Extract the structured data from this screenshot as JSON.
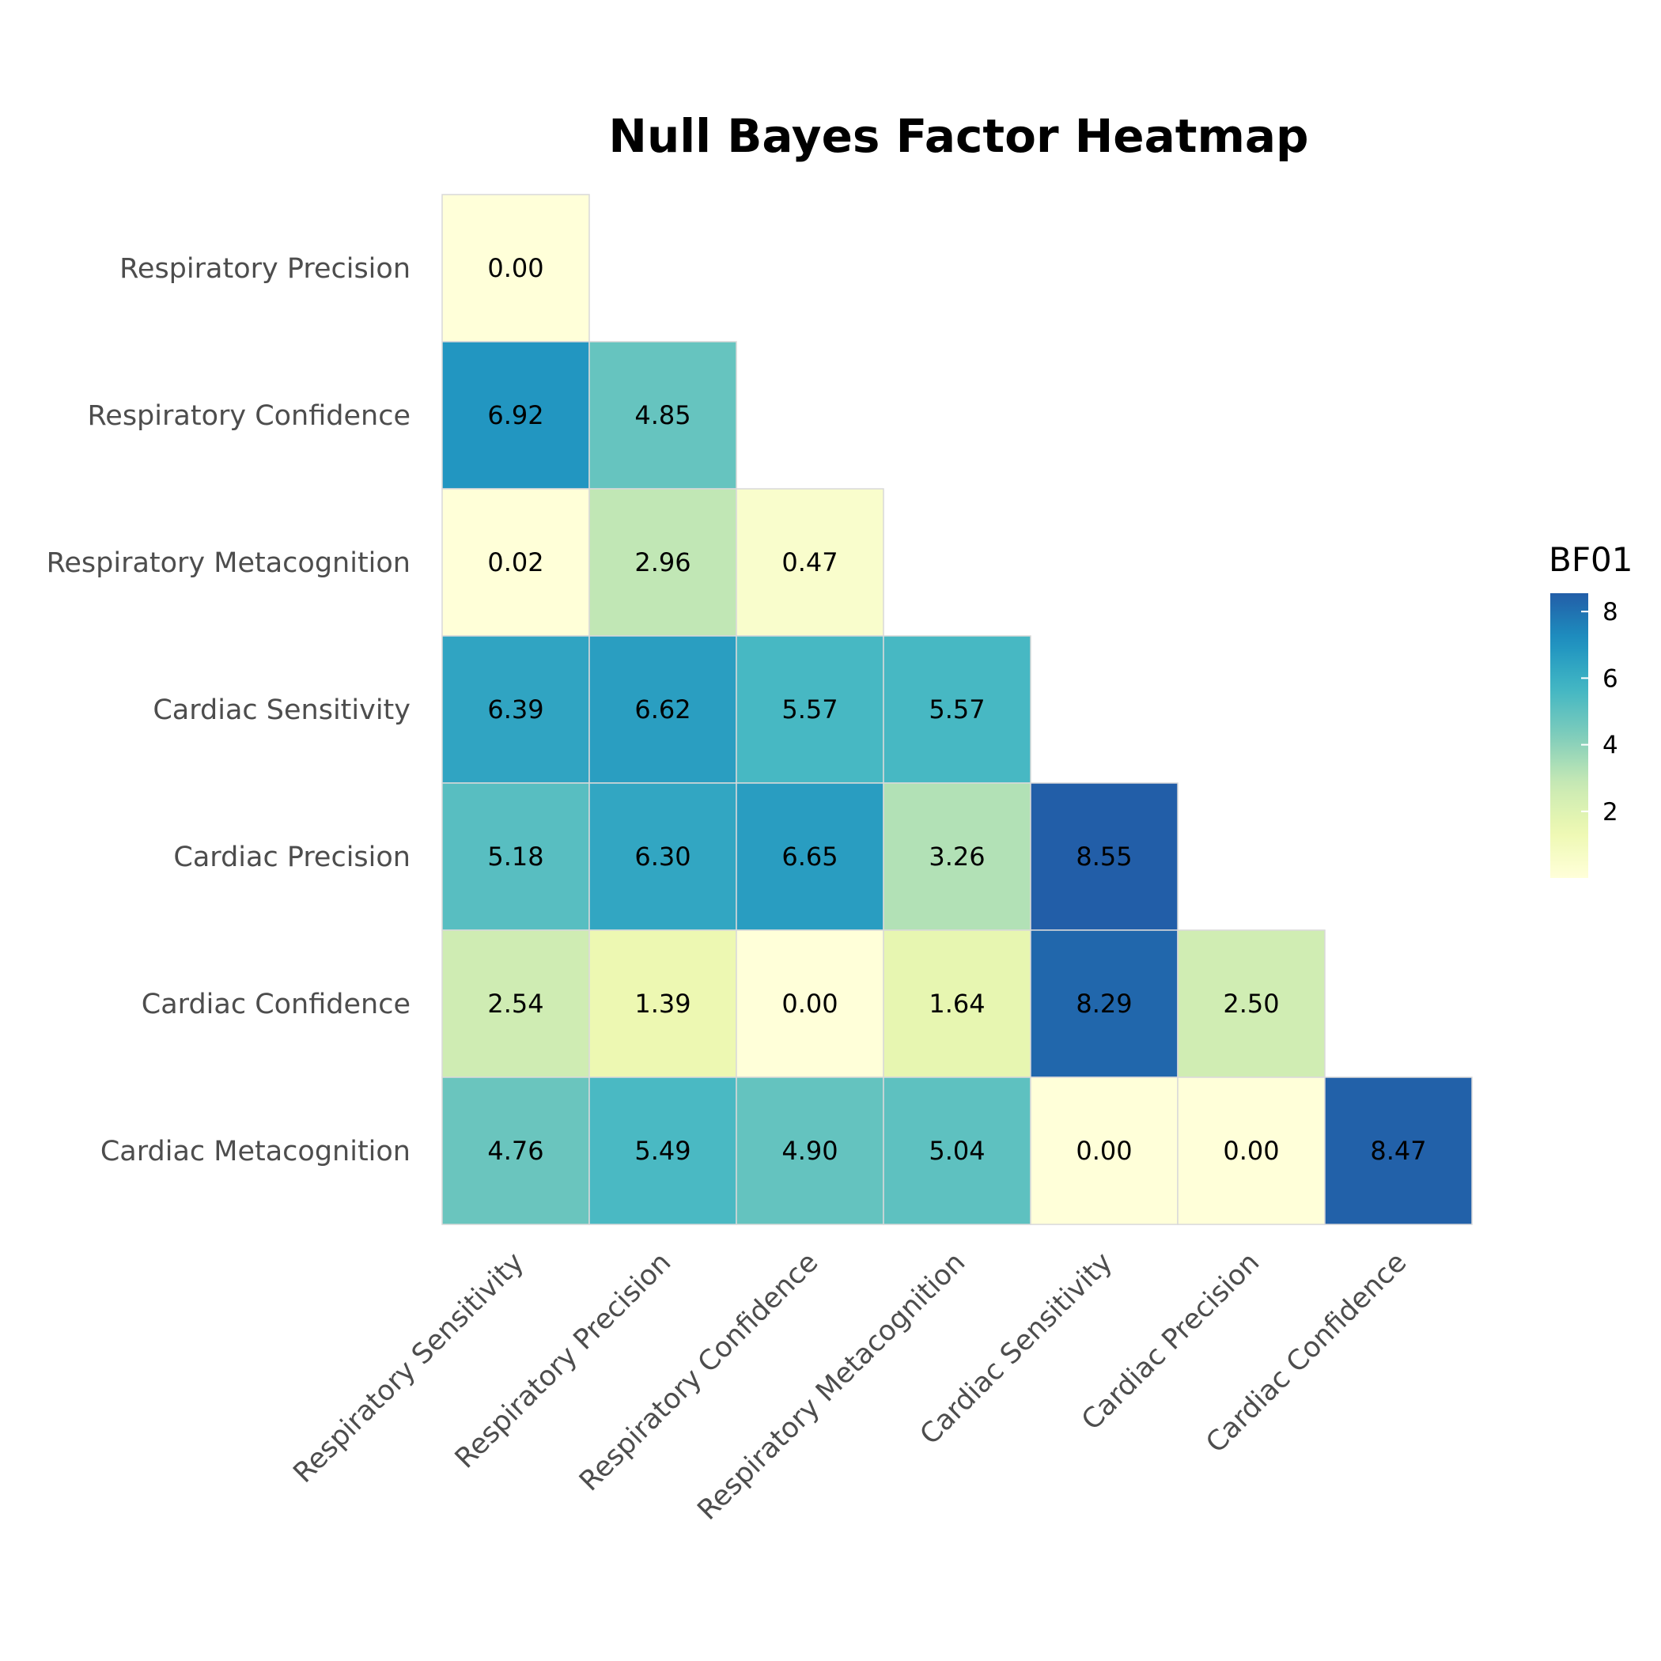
{
  "chart_data": {
    "type": "heatmap",
    "title": "Null Bayes Factor Heatmap",
    "xlabel": "",
    "ylabel": "",
    "x_categories": [
      "Respiratory Sensitivity",
      "Respiratory Precision",
      "Respiratory Confidence",
      "Respiratory Metacognition",
      "Cardiac Sensitivity",
      "Cardiac Precision",
      "Cardiac Confidence"
    ],
    "y_categories": [
      "Respiratory Precision",
      "Respiratory Confidence",
      "Respiratory Metacognition",
      "Cardiac Sensitivity",
      "Cardiac Precision",
      "Cardiac Confidence",
      "Cardiac Metacognition"
    ],
    "values": [
      [
        0.0
      ],
      [
        6.92,
        4.85
      ],
      [
        0.02,
        2.96,
        0.47
      ],
      [
        6.39,
        6.62,
        5.57,
        5.57
      ],
      [
        5.18,
        6.3,
        6.65,
        3.26,
        8.55
      ],
      [
        2.54,
        1.39,
        0.0,
        1.64,
        8.29,
        2.5
      ],
      [
        4.76,
        5.49,
        4.9,
        5.04,
        0.0,
        0.0,
        8.47
      ]
    ],
    "value_format": "2 decimals",
    "colorbar": {
      "title": "BF01",
      "range": [
        0,
        8.55
      ],
      "ticks": [
        2,
        4,
        6,
        8
      ],
      "colormap": "YlGnBu",
      "colors": [
        "#ffffd9",
        "#edf8b1",
        "#c7e9b4",
        "#7fcdbb",
        "#41b6c4",
        "#1d91c0",
        "#225ea8"
      ]
    },
    "grid": false,
    "legend_position": "right"
  }
}
